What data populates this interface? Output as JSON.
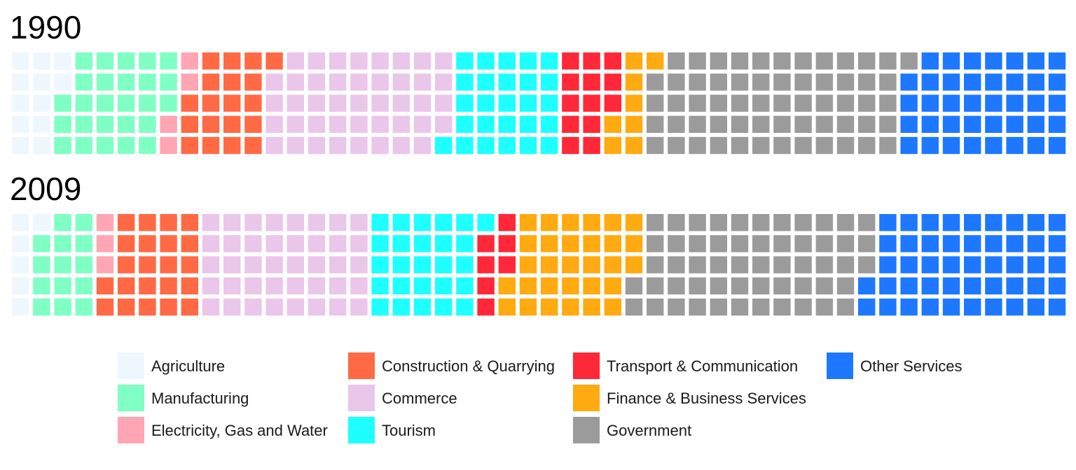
{
  "chart_data": {
    "type": "waffle",
    "units_per_panel": 250,
    "rows": 5,
    "columns": 50,
    "fill_order": "column-wise, top to bottom, left to right",
    "categories": [
      {
        "name": "Agriculture",
        "color": "#EEF6FE"
      },
      {
        "name": "Manufacturing",
        "color": "#7FFFC4"
      },
      {
        "name": "Electricity, Gas and Water",
        "color": "#FFA5B4"
      },
      {
        "name": "Construction & Quarrying",
        "color": "#FF6A45"
      },
      {
        "name": "Commerce",
        "color": "#EAC6EA"
      },
      {
        "name": "Tourism",
        "color": "#1EFFFF"
      },
      {
        "name": "Transport & Communication",
        "color": "#FF2838"
      },
      {
        "name": "Finance & Business Services",
        "color": "#FFAA10"
      },
      {
        "name": "Government",
        "color": "#9B9B9B"
      },
      {
        "name": "Other Services",
        "color": "#1E78FF"
      }
    ],
    "panels": [
      {
        "title": "1990",
        "values": [
          12,
          26,
          4,
          19,
          43,
          26,
          13,
          8,
          60,
          39
        ]
      },
      {
        "title": "2009",
        "values": [
          6,
          14,
          3,
          22,
          40,
          26,
          7,
          30,
          55,
          47
        ]
      }
    ],
    "legend": {
      "position": "bottom",
      "columns": [
        [
          "Agriculture",
          "Manufacturing",
          "Electricity, Gas and Water"
        ],
        [
          "Construction & Quarrying",
          "Commerce",
          "Tourism"
        ],
        [
          "Transport & Communication",
          "Finance & Business Services",
          "Government"
        ],
        [
          "Other Services"
        ]
      ]
    }
  }
}
